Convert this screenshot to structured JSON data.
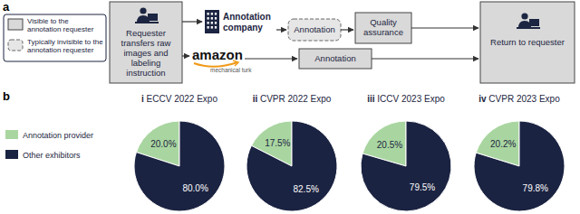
{
  "diagram": {
    "panel_label": "a",
    "legend": [
      {
        "label": "Visible to the annotation requester",
        "style": "solid"
      },
      {
        "label": "Typically invisible to the annotation requester",
        "style": "dashed"
      }
    ],
    "nodes": [
      {
        "label": "Requester transfers raw images and labeling instruction",
        "style": "solid"
      },
      {
        "label": "Annotation company"
      },
      {
        "label": "Annotation",
        "style": "dashed"
      },
      {
        "label": "Quality assurance",
        "style": "solid"
      },
      {
        "label": "Return to requester",
        "style": "solid"
      },
      {
        "label": "amazon",
        "sublabel": "mechanical turk"
      },
      {
        "label": "Annotation",
        "style": "solid"
      }
    ]
  },
  "pie_legend": {
    "panel_label": "b",
    "categories": [
      "Annotation provider",
      "Other exhibitors"
    ],
    "colors": [
      "#a9d6a0",
      "#1b2342"
    ]
  },
  "chart_data": [
    {
      "type": "pie",
      "title": "i ECCV 2022 Expo",
      "values": [
        20,
        80
      ],
      "value_labels": [
        "20.0%",
        "80.0%"
      ],
      "colors": [
        "#a9d6a0",
        "#1b2342"
      ]
    },
    {
      "type": "pie",
      "title": "ii CVPR 2022 Expo",
      "values": [
        17.5,
        82.5
      ],
      "value_labels": [
        "17.5%",
        "82.5%"
      ],
      "colors": [
        "#a9d6a0",
        "#1b2342"
      ]
    },
    {
      "type": "pie",
      "title": "iii ICCV 2023 Expo",
      "values": [
        20.5,
        79.5
      ],
      "value_labels": [
        "20.5%",
        "79.5%"
      ],
      "colors": [
        "#a9d6a0",
        "#1b2342"
      ]
    },
    {
      "type": "pie",
      "title": "iv CVPR 2023 Expo",
      "values": [
        20.2,
        79.8
      ],
      "value_labels": [
        "20.2%",
        "79.8%"
      ],
      "colors": [
        "#a9d6a0",
        "#1b2342"
      ]
    }
  ]
}
